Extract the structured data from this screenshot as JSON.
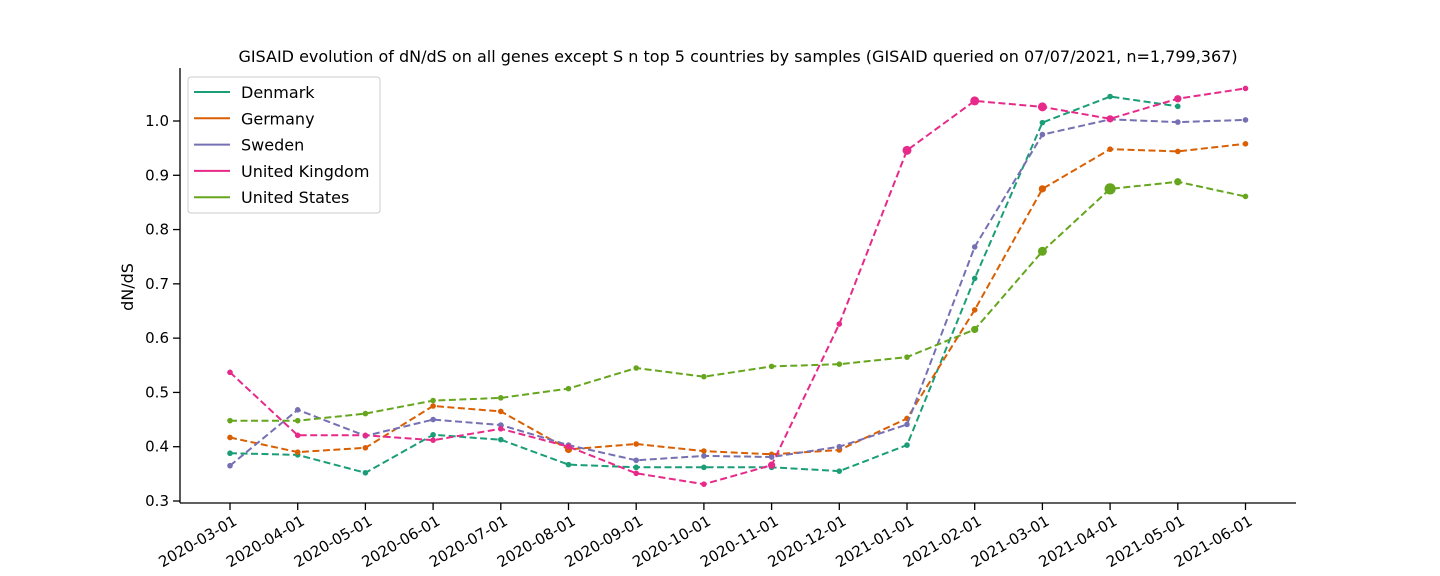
{
  "chart_data": {
    "type": "line",
    "title": "GISAID evolution of dN/dS on all genes except S n top 5 countries by samples (GISAID queried on 07/07/2021, n=1,799,367)",
    "xlabel": "",
    "ylabel": "dN/dS",
    "ylim": [
      0.29,
      1.095
    ],
    "yticks": [
      "0.3",
      "0.4",
      "0.5",
      "0.6",
      "0.7",
      "0.8",
      "0.9",
      "1.0"
    ],
    "categories": [
      "2020-03-01",
      "2020-04-01",
      "2020-05-01",
      "2020-06-01",
      "2020-07-01",
      "2020-08-01",
      "2020-09-01",
      "2020-10-01",
      "2020-11-01",
      "2020-12-01",
      "2021-01-01",
      "2021-02-01",
      "2021-03-01",
      "2021-04-01",
      "2021-05-01",
      "2021-06-01"
    ],
    "grid": false,
    "legend_position": "top-left",
    "series": [
      {
        "name": "Denmark",
        "color": "#1b9e77",
        "values": [
          0.388,
          0.385,
          0.352,
          0.422,
          0.413,
          0.367,
          0.362,
          0.362,
          0.362,
          0.355,
          0.403,
          0.71,
          0.997,
          1.045,
          1.027,
          null
        ],
        "sizes": [
          1,
          1,
          1,
          1,
          1,
          1,
          1,
          1,
          1,
          1,
          1,
          1,
          1,
          1,
          1,
          1
        ]
      },
      {
        "name": "Germany",
        "color": "#d95f02",
        "values": [
          0.417,
          0.39,
          0.398,
          0.475,
          0.465,
          0.395,
          0.405,
          0.392,
          0.386,
          0.394,
          0.452,
          0.652,
          0.875,
          0.948,
          0.944,
          0.958
        ],
        "sizes": [
          1,
          1,
          1,
          1,
          1,
          1.3,
          1,
          1,
          1,
          1,
          1,
          1,
          1.3,
          1,
          1,
          1
        ]
      },
      {
        "name": "Sweden",
        "color": "#7570b3",
        "values": [
          0.365,
          0.468,
          0.42,
          0.45,
          0.44,
          0.403,
          0.375,
          0.383,
          0.381,
          0.4,
          0.441,
          0.768,
          0.975,
          1.003,
          0.998,
          1.002
        ],
        "sizes": [
          1,
          1,
          1,
          1,
          1,
          1,
          1,
          1,
          1,
          1,
          1,
          1,
          1,
          1,
          1,
          1
        ]
      },
      {
        "name": "United Kingdom",
        "color": "#e7298a",
        "values": [
          0.537,
          0.421,
          0.421,
          0.412,
          0.433,
          0.4,
          0.351,
          0.331,
          0.366,
          0.626,
          0.946,
          1.037,
          1.026,
          1.004,
          1.041,
          1.06
        ],
        "sizes": [
          1,
          1,
          1,
          1,
          1,
          1,
          1,
          1,
          1.3,
          1,
          1.6,
          1.6,
          1.6,
          1.3,
          1.3,
          1
        ]
      },
      {
        "name": "United States",
        "color": "#66a61e",
        "values": [
          0.448,
          0.448,
          0.461,
          0.485,
          0.49,
          0.507,
          0.545,
          0.529,
          0.548,
          0.552,
          0.565,
          0.616,
          0.76,
          0.875,
          0.888,
          0.861
        ],
        "sizes": [
          1,
          1,
          1,
          1,
          1,
          1,
          1,
          1,
          1,
          1,
          1,
          1.3,
          1.6,
          2,
          1.3,
          1
        ]
      }
    ]
  }
}
